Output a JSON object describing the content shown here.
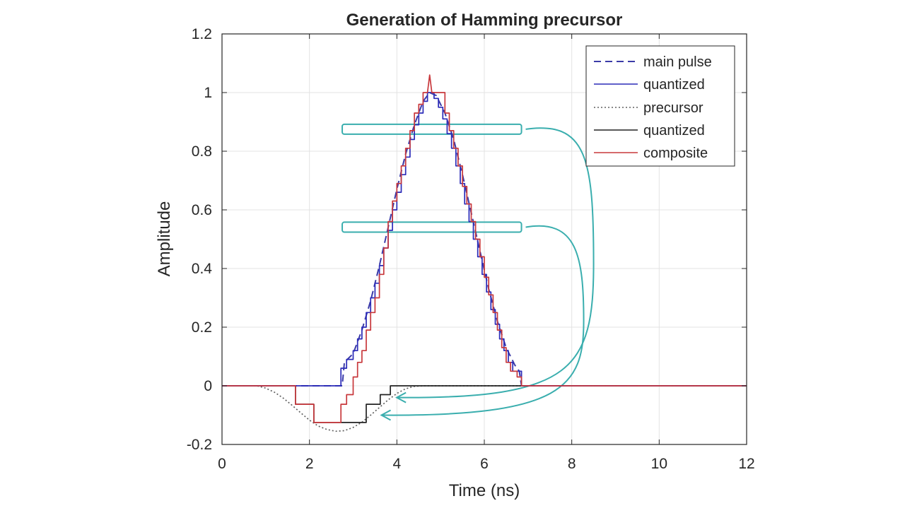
{
  "chart_data": {
    "type": "line",
    "title": "Generation of Hamming precursor",
    "xlabel": "Time (ns)",
    "ylabel": "Amplitude",
    "xlim": [
      0,
      12
    ],
    "ylim": [
      -0.2,
      1.2
    ],
    "xticks": [
      0,
      2,
      4,
      6,
      8,
      10,
      12
    ],
    "yticks": [
      -0.2,
      0,
      0.2,
      0.4,
      0.6,
      0.8,
      1,
      1.2
    ],
    "xtick_labels": [
      "0",
      "2",
      "4",
      "6",
      "8",
      "10",
      "12"
    ],
    "ytick_labels": [
      "-0.2",
      "0",
      "0.2",
      "0.4",
      "0.6",
      "0.8",
      "1",
      "1.2"
    ],
    "grid": true,
    "legend_position": "top-right",
    "series": [
      {
        "name": "main pulse",
        "color": "#3b3ba8",
        "style": "dashed",
        "x": [
          0,
          2.75,
          2.8,
          3.0,
          3.2,
          3.4,
          3.6,
          3.8,
          4.0,
          4.2,
          4.4,
          4.6,
          4.75,
          4.9,
          5.1,
          5.3,
          5.5,
          5.7,
          5.9,
          6.1,
          6.3,
          6.5,
          6.7,
          6.8,
          6.85,
          12
        ],
        "y": [
          0,
          0,
          0.08,
          0.11,
          0.19,
          0.29,
          0.41,
          0.54,
          0.67,
          0.79,
          0.89,
          0.97,
          1.0,
          0.99,
          0.93,
          0.84,
          0.72,
          0.59,
          0.46,
          0.33,
          0.22,
          0.13,
          0.07,
          0.05,
          0,
          0
        ]
      },
      {
        "name": "quantized",
        "color": "#2b2bb8",
        "style": "solid",
        "x": [
          0,
          2.72,
          2.72,
          2.85,
          2.85,
          3.0,
          3.0,
          3.1,
          3.1,
          3.2,
          3.2,
          3.3,
          3.3,
          3.4,
          3.4,
          3.5,
          3.5,
          3.6,
          3.6,
          3.7,
          3.7,
          3.8,
          3.8,
          3.9,
          3.9,
          4.0,
          4.0,
          4.1,
          4.1,
          4.2,
          4.2,
          4.3,
          4.3,
          4.4,
          4.4,
          4.5,
          4.5,
          4.6,
          4.6,
          4.7,
          4.7,
          4.85,
          4.85,
          4.95,
          4.95,
          5.05,
          5.05,
          5.15,
          5.15,
          5.25,
          5.25,
          5.35,
          5.35,
          5.45,
          5.45,
          5.55,
          5.55,
          5.65,
          5.65,
          5.75,
          5.75,
          5.85,
          5.85,
          5.95,
          5.95,
          6.05,
          6.05,
          6.15,
          6.15,
          6.25,
          6.25,
          6.35,
          6.35,
          6.45,
          6.45,
          6.55,
          6.55,
          6.65,
          6.65,
          6.85,
          6.85,
          12
        ],
        "y": [
          0,
          0,
          0.06,
          0.06,
          0.09,
          0.09,
          0.12,
          0.12,
          0.16,
          0.16,
          0.2,
          0.2,
          0.25,
          0.25,
          0.3,
          0.3,
          0.35,
          0.35,
          0.41,
          0.41,
          0.47,
          0.47,
          0.53,
          0.53,
          0.6,
          0.6,
          0.66,
          0.66,
          0.72,
          0.72,
          0.78,
          0.78,
          0.84,
          0.84,
          0.89,
          0.89,
          0.93,
          0.93,
          0.97,
          0.97,
          1.0,
          1.0,
          0.98,
          0.98,
          0.95,
          0.95,
          0.91,
          0.91,
          0.86,
          0.86,
          0.81,
          0.81,
          0.75,
          0.75,
          0.69,
          0.69,
          0.62,
          0.62,
          0.56,
          0.56,
          0.5,
          0.5,
          0.44,
          0.44,
          0.38,
          0.38,
          0.32,
          0.32,
          0.26,
          0.26,
          0.21,
          0.21,
          0.16,
          0.16,
          0.12,
          0.12,
          0.08,
          0.08,
          0.05,
          0.05,
          0,
          0
        ]
      },
      {
        "name": "precursor",
        "color": "#606060",
        "style": "dotted",
        "x": [
          0,
          0.8,
          1.0,
          1.2,
          1.4,
          1.6,
          1.8,
          2.0,
          2.2,
          2.4,
          2.6,
          2.8,
          3.0,
          3.2,
          3.4,
          3.6,
          3.8,
          4.0,
          4.2,
          4.4,
          4.6,
          4.8,
          12
        ],
        "y": [
          0,
          0,
          -0.008,
          -0.022,
          -0.042,
          -0.066,
          -0.092,
          -0.117,
          -0.137,
          -0.149,
          -0.155,
          -0.153,
          -0.142,
          -0.124,
          -0.1,
          -0.074,
          -0.048,
          -0.026,
          -0.01,
          -0.002,
          0,
          0,
          0
        ]
      },
      {
        "name": "quantized",
        "color": "#222222",
        "style": "solid",
        "x": [
          0,
          1.68,
          1.68,
          2.1,
          2.1,
          3.3,
          3.3,
          3.62,
          3.62,
          3.85,
          3.85,
          12
        ],
        "y": [
          0,
          0,
          -0.063,
          -0.063,
          -0.125,
          -0.125,
          -0.063,
          -0.063,
          -0.03,
          -0.03,
          0,
          0
        ]
      },
      {
        "name": "composite",
        "color": "#c8383c",
        "style": "solid",
        "x": [
          0,
          1.68,
          1.68,
          2.1,
          2.1,
          2.72,
          2.72,
          2.85,
          2.85,
          3.0,
          3.0,
          3.1,
          3.1,
          3.2,
          3.2,
          3.3,
          3.3,
          3.4,
          3.4,
          3.5,
          3.5,
          3.6,
          3.6,
          3.7,
          3.7,
          3.8,
          3.8,
          3.9,
          3.9,
          4.0,
          4.0,
          4.1,
          4.1,
          4.2,
          4.2,
          4.3,
          4.3,
          4.4,
          4.4,
          4.5,
          4.5,
          4.6,
          4.6,
          4.7,
          4.7,
          4.75,
          4.8,
          4.85,
          4.85,
          5.1,
          5.1,
          5.2,
          5.2,
          5.3,
          5.3,
          5.4,
          5.4,
          5.5,
          5.5,
          5.6,
          5.6,
          5.7,
          5.7,
          5.8,
          5.8,
          5.9,
          5.9,
          6.0,
          6.0,
          6.1,
          6.1,
          6.2,
          6.2,
          6.3,
          6.3,
          6.4,
          6.4,
          6.5,
          6.5,
          6.6,
          6.6,
          6.75,
          6.75,
          6.85,
          6.85,
          12
        ],
        "y": [
          0,
          0,
          -0.063,
          -0.063,
          -0.125,
          -0.125,
          -0.063,
          -0.063,
          -0.03,
          -0.03,
          0.03,
          0.03,
          0.08,
          0.08,
          0.12,
          0.12,
          0.19,
          0.19,
          0.25,
          0.25,
          0.3,
          0.3,
          0.38,
          0.38,
          0.47,
          0.47,
          0.56,
          0.56,
          0.63,
          0.63,
          0.69,
          0.69,
          0.75,
          0.75,
          0.81,
          0.81,
          0.87,
          0.87,
          0.93,
          0.93,
          0.96,
          0.96,
          1.0,
          1.0,
          1.0,
          1.06,
          1.0,
          1.0,
          1.0,
          1.0,
          0.93,
          0.93,
          0.87,
          0.87,
          0.81,
          0.81,
          0.75,
          0.75,
          0.68,
          0.68,
          0.62,
          0.62,
          0.56,
          0.56,
          0.5,
          0.5,
          0.44,
          0.44,
          0.37,
          0.37,
          0.31,
          0.31,
          0.25,
          0.25,
          0.19,
          0.19,
          0.13,
          0.13,
          0.08,
          0.08,
          0.05,
          0.05,
          0.03,
          0.03,
          0,
          0
        ]
      }
    ],
    "annotations": [
      {
        "type": "callout-box",
        "color": "#3aaeae",
        "x_range": [
          2.75,
          6.85
        ],
        "y_range": [
          0.858,
          0.892
        ],
        "arrow_to": {
          "x": 3.9,
          "y": -0.04
        }
      },
      {
        "type": "callout-box",
        "color": "#3aaeae",
        "x_range": [
          2.75,
          6.85
        ],
        "y_range": [
          0.524,
          0.558
        ],
        "arrow_to": {
          "x": 3.55,
          "y": -0.1
        }
      }
    ]
  }
}
